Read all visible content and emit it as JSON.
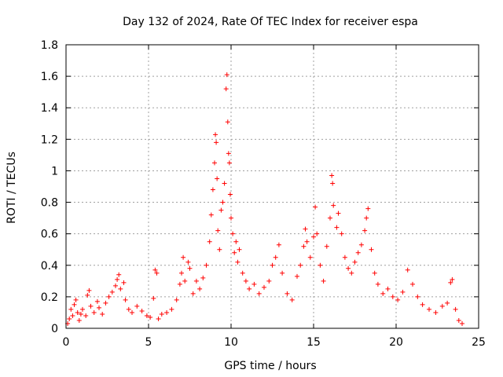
{
  "chart_data": {
    "type": "scatter",
    "title": "Day 132 of 2024, Rate Of TEC Index for receiver espa",
    "xlabel": "GPS time / hours",
    "ylabel": "ROTI / TECUs",
    "xlim": [
      0,
      25
    ],
    "ylim": [
      0,
      1.8
    ],
    "xticks": [
      0,
      5,
      10,
      15,
      20,
      25
    ],
    "xtick_labels": [
      "0",
      "5",
      "10",
      "15",
      "20",
      "25"
    ],
    "yticks": [
      0,
      0.2,
      0.4,
      0.6,
      0.8,
      1,
      1.2,
      1.4,
      1.6,
      1.8
    ],
    "ytick_labels": [
      "0",
      "0.2",
      "0.4",
      "0.6",
      "0.8",
      "1",
      "1.2",
      "1.4",
      "1.6",
      "1.8"
    ],
    "grid": true,
    "marker": "+",
    "color": "#ff0000",
    "series": [
      {
        "values": [
          [
            0.1,
            0.03
          ],
          [
            0.2,
            0.06
          ],
          [
            0.3,
            0.12
          ],
          [
            0.4,
            0.08
          ],
          [
            0.5,
            0.15
          ],
          [
            0.6,
            0.18
          ],
          [
            0.7,
            0.1
          ],
          [
            0.8,
            0.05
          ],
          [
            0.9,
            0.09
          ],
          [
            1.0,
            0.12
          ],
          [
            1.2,
            0.08
          ],
          [
            1.3,
            0.21
          ],
          [
            1.4,
            0.24
          ],
          [
            1.5,
            0.14
          ],
          [
            1.7,
            0.1
          ],
          [
            1.9,
            0.17
          ],
          [
            2.0,
            0.13
          ],
          [
            2.2,
            0.09
          ],
          [
            2.4,
            0.16
          ],
          [
            2.6,
            0.2
          ],
          [
            2.8,
            0.23
          ],
          [
            3.0,
            0.27
          ],
          [
            3.1,
            0.31
          ],
          [
            3.2,
            0.34
          ],
          [
            3.3,
            0.25
          ],
          [
            3.5,
            0.29
          ],
          [
            3.6,
            0.18
          ],
          [
            3.8,
            0.12
          ],
          [
            4.0,
            0.1
          ],
          [
            4.3,
            0.14
          ],
          [
            4.6,
            0.11
          ],
          [
            4.9,
            0.08
          ],
          [
            5.1,
            0.07
          ],
          [
            5.3,
            0.19
          ],
          [
            5.4,
            0.37
          ],
          [
            5.5,
            0.35
          ],
          [
            5.6,
            0.06
          ],
          [
            5.8,
            0.09
          ],
          [
            6.1,
            0.1
          ],
          [
            6.4,
            0.12
          ],
          [
            6.7,
            0.18
          ],
          [
            6.9,
            0.28
          ],
          [
            7.0,
            0.35
          ],
          [
            7.1,
            0.45
          ],
          [
            7.2,
            0.3
          ],
          [
            7.4,
            0.42
          ],
          [
            7.5,
            0.38
          ],
          [
            7.7,
            0.22
          ],
          [
            7.9,
            0.3
          ],
          [
            8.1,
            0.25
          ],
          [
            8.3,
            0.32
          ],
          [
            8.5,
            0.4
          ],
          [
            8.7,
            0.55
          ],
          [
            8.8,
            0.72
          ],
          [
            8.9,
            0.88
          ],
          [
            9.0,
            1.05
          ],
          [
            9.05,
            1.23
          ],
          [
            9.1,
            1.18
          ],
          [
            9.15,
            0.95
          ],
          [
            9.2,
            0.62
          ],
          [
            9.3,
            0.5
          ],
          [
            9.4,
            0.75
          ],
          [
            9.5,
            0.8
          ],
          [
            9.6,
            0.92
          ],
          [
            9.7,
            1.52
          ],
          [
            9.75,
            1.61
          ],
          [
            9.8,
            1.31
          ],
          [
            9.85,
            1.11
          ],
          [
            9.9,
            1.05
          ],
          [
            9.95,
            0.85
          ],
          [
            10.0,
            0.7
          ],
          [
            10.1,
            0.6
          ],
          [
            10.2,
            0.48
          ],
          [
            10.3,
            0.55
          ],
          [
            10.4,
            0.42
          ],
          [
            10.5,
            0.5
          ],
          [
            10.7,
            0.35
          ],
          [
            10.9,
            0.3
          ],
          [
            11.1,
            0.25
          ],
          [
            11.4,
            0.28
          ],
          [
            11.7,
            0.22
          ],
          [
            12.0,
            0.26
          ],
          [
            12.3,
            0.3
          ],
          [
            12.5,
            0.4
          ],
          [
            12.7,
            0.45
          ],
          [
            12.9,
            0.53
          ],
          [
            13.1,
            0.35
          ],
          [
            13.4,
            0.22
          ],
          [
            13.7,
            0.18
          ],
          [
            14.0,
            0.33
          ],
          [
            14.2,
            0.4
          ],
          [
            14.4,
            0.52
          ],
          [
            14.5,
            0.63
          ],
          [
            14.6,
            0.55
          ],
          [
            14.8,
            0.45
          ],
          [
            15.0,
            0.58
          ],
          [
            15.1,
            0.77
          ],
          [
            15.2,
            0.6
          ],
          [
            15.4,
            0.4
          ],
          [
            15.6,
            0.3
          ],
          [
            15.8,
            0.52
          ],
          [
            16.0,
            0.7
          ],
          [
            16.1,
            0.97
          ],
          [
            16.15,
            0.92
          ],
          [
            16.2,
            0.78
          ],
          [
            16.4,
            0.64
          ],
          [
            16.5,
            0.73
          ],
          [
            16.7,
            0.6
          ],
          [
            16.9,
            0.45
          ],
          [
            17.1,
            0.38
          ],
          [
            17.3,
            0.35
          ],
          [
            17.5,
            0.42
          ],
          [
            17.7,
            0.48
          ],
          [
            17.9,
            0.53
          ],
          [
            18.1,
            0.62
          ],
          [
            18.2,
            0.7
          ],
          [
            18.3,
            0.76
          ],
          [
            18.5,
            0.5
          ],
          [
            18.7,
            0.35
          ],
          [
            18.9,
            0.28
          ],
          [
            19.2,
            0.22
          ],
          [
            19.5,
            0.25
          ],
          [
            19.8,
            0.2
          ],
          [
            20.1,
            0.18
          ],
          [
            20.4,
            0.23
          ],
          [
            20.7,
            0.37
          ],
          [
            21.0,
            0.28
          ],
          [
            21.3,
            0.2
          ],
          [
            21.6,
            0.15
          ],
          [
            22.0,
            0.12
          ],
          [
            22.4,
            0.1
          ],
          [
            22.8,
            0.14
          ],
          [
            23.1,
            0.16
          ],
          [
            23.3,
            0.29
          ],
          [
            23.4,
            0.31
          ],
          [
            23.6,
            0.12
          ],
          [
            23.8,
            0.05
          ],
          [
            24.0,
            0.03
          ]
        ]
      }
    ]
  }
}
